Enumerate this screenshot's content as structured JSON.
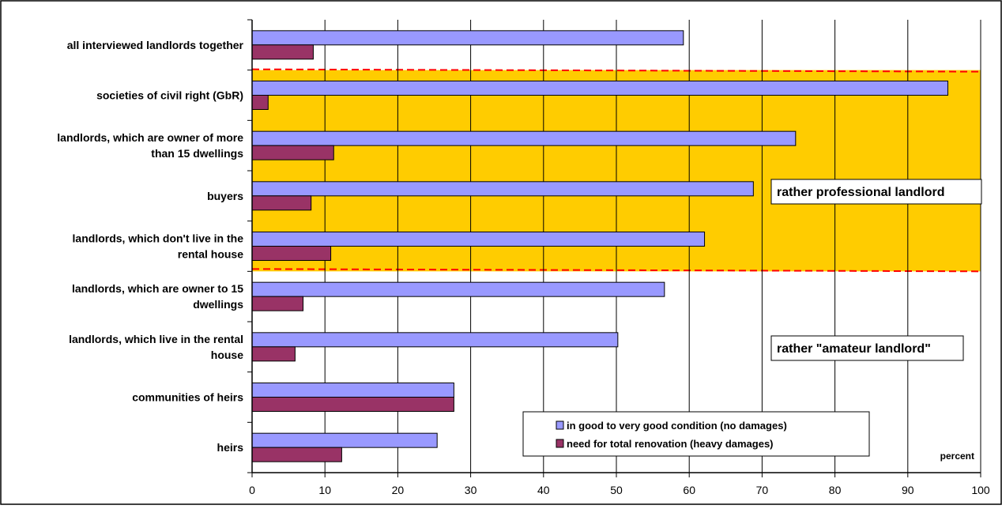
{
  "chart_data": {
    "type": "bar",
    "orientation": "horizontal",
    "categories": [
      [
        "all interviewed landlords together"
      ],
      [
        "societies of civil right (GbR)"
      ],
      [
        "landlords, which are owner of more",
        "than 15 dwellings"
      ],
      [
        "buyers"
      ],
      [
        "landlords, which don't live in the",
        "rental house"
      ],
      [
        "landlords, which are owner to 15",
        "dwellings"
      ],
      [
        "landlords, which live in the rental",
        "house"
      ],
      [
        "communities of heirs"
      ],
      [
        "heirs"
      ]
    ],
    "series": [
      {
        "name": "in good to very good condition (no damages)",
        "color": "#9999ff",
        "values": [
          59.2,
          95.5,
          74.6,
          68.8,
          62.1,
          56.6,
          50.2,
          27.7,
          25.4
        ]
      },
      {
        "name": "need for total renovation (heavy damages)",
        "color": "#993366",
        "values": [
          8.4,
          2.2,
          11.2,
          8.1,
          10.8,
          7.0,
          5.9,
          27.7,
          12.3
        ]
      }
    ],
    "xlim": [
      0,
      100
    ],
    "xticks": [
      0,
      10,
      20,
      30,
      40,
      50,
      60,
      70,
      80,
      90,
      100
    ],
    "xlabel": "percent",
    "grid": "vertical",
    "legend_position": "bottom-right",
    "annotations": [
      "rather professional landlord",
      "rather \"amateur landlord\""
    ],
    "highlight_band": {
      "from_category": 1,
      "to_category": 4,
      "color": "#ffcc00",
      "border_color": "#ff0000"
    }
  }
}
